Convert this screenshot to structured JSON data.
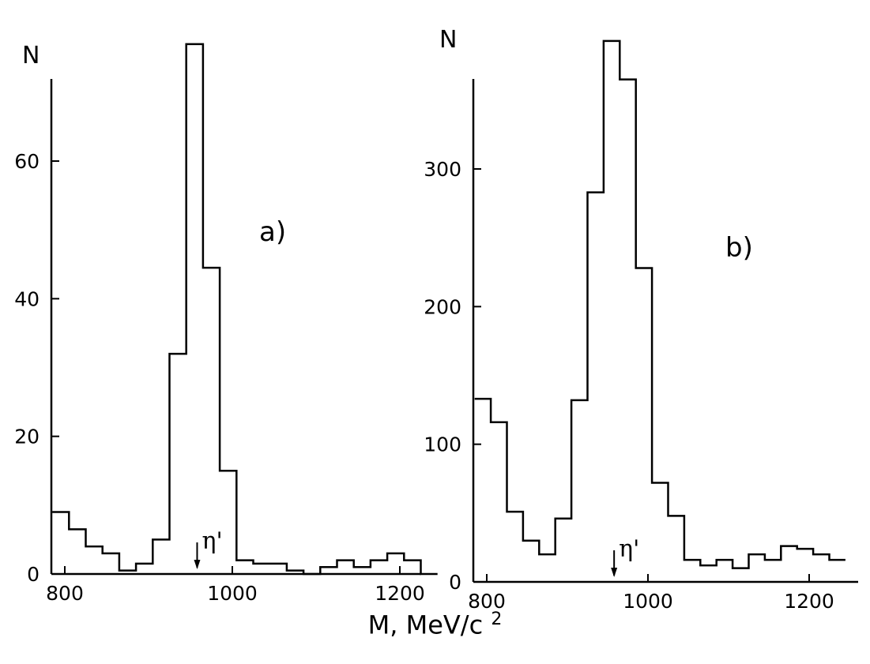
{
  "xlabel": "M, MeV/c",
  "xlabel_sup": "2",
  "chart_data": [
    {
      "type": "bar",
      "panel": "a)",
      "ylabel": "N",
      "xlim": [
        785,
        1245
      ],
      "ylim": [
        0,
        78
      ],
      "x_ticks": [
        800,
        1000,
        1200
      ],
      "y_ticks": [
        0,
        20,
        40,
        60
      ],
      "bin_edges": [
        785,
        805,
        825,
        845,
        865,
        885,
        905,
        925,
        945,
        965,
        985,
        1005,
        1025,
        1045,
        1065,
        1085,
        1105,
        1125,
        1145,
        1165,
        1185,
        1205,
        1225,
        1245
      ],
      "counts": [
        9,
        6.5,
        4,
        3,
        0.5,
        1.5,
        5,
        32,
        77,
        44.5,
        15,
        2,
        1.5,
        1.5,
        0.5,
        0,
        1,
        2,
        1,
        2,
        3,
        2,
        0
      ],
      "marker": {
        "label": "η'",
        "x": 958
      }
    },
    {
      "type": "bar",
      "panel": "b)",
      "ylabel": "N",
      "xlim": [
        785,
        1245
      ],
      "ylim": [
        0,
        390
      ],
      "x_ticks": [
        800,
        1000,
        1200
      ],
      "y_ticks": [
        0,
        100,
        200,
        300
      ],
      "bin_edges": [
        785,
        805,
        825,
        845,
        865,
        885,
        905,
        925,
        945,
        965,
        985,
        1005,
        1025,
        1045,
        1065,
        1085,
        1105,
        1125,
        1145,
        1165,
        1185,
        1205,
        1225,
        1245
      ],
      "counts": [
        133,
        116,
        51,
        30,
        20,
        46,
        132,
        283,
        393,
        365,
        228,
        72,
        48,
        16,
        12,
        16,
        10,
        20,
        16,
        26,
        24,
        20,
        16
      ],
      "marker": {
        "label": "η'",
        "x": 958
      }
    }
  ]
}
